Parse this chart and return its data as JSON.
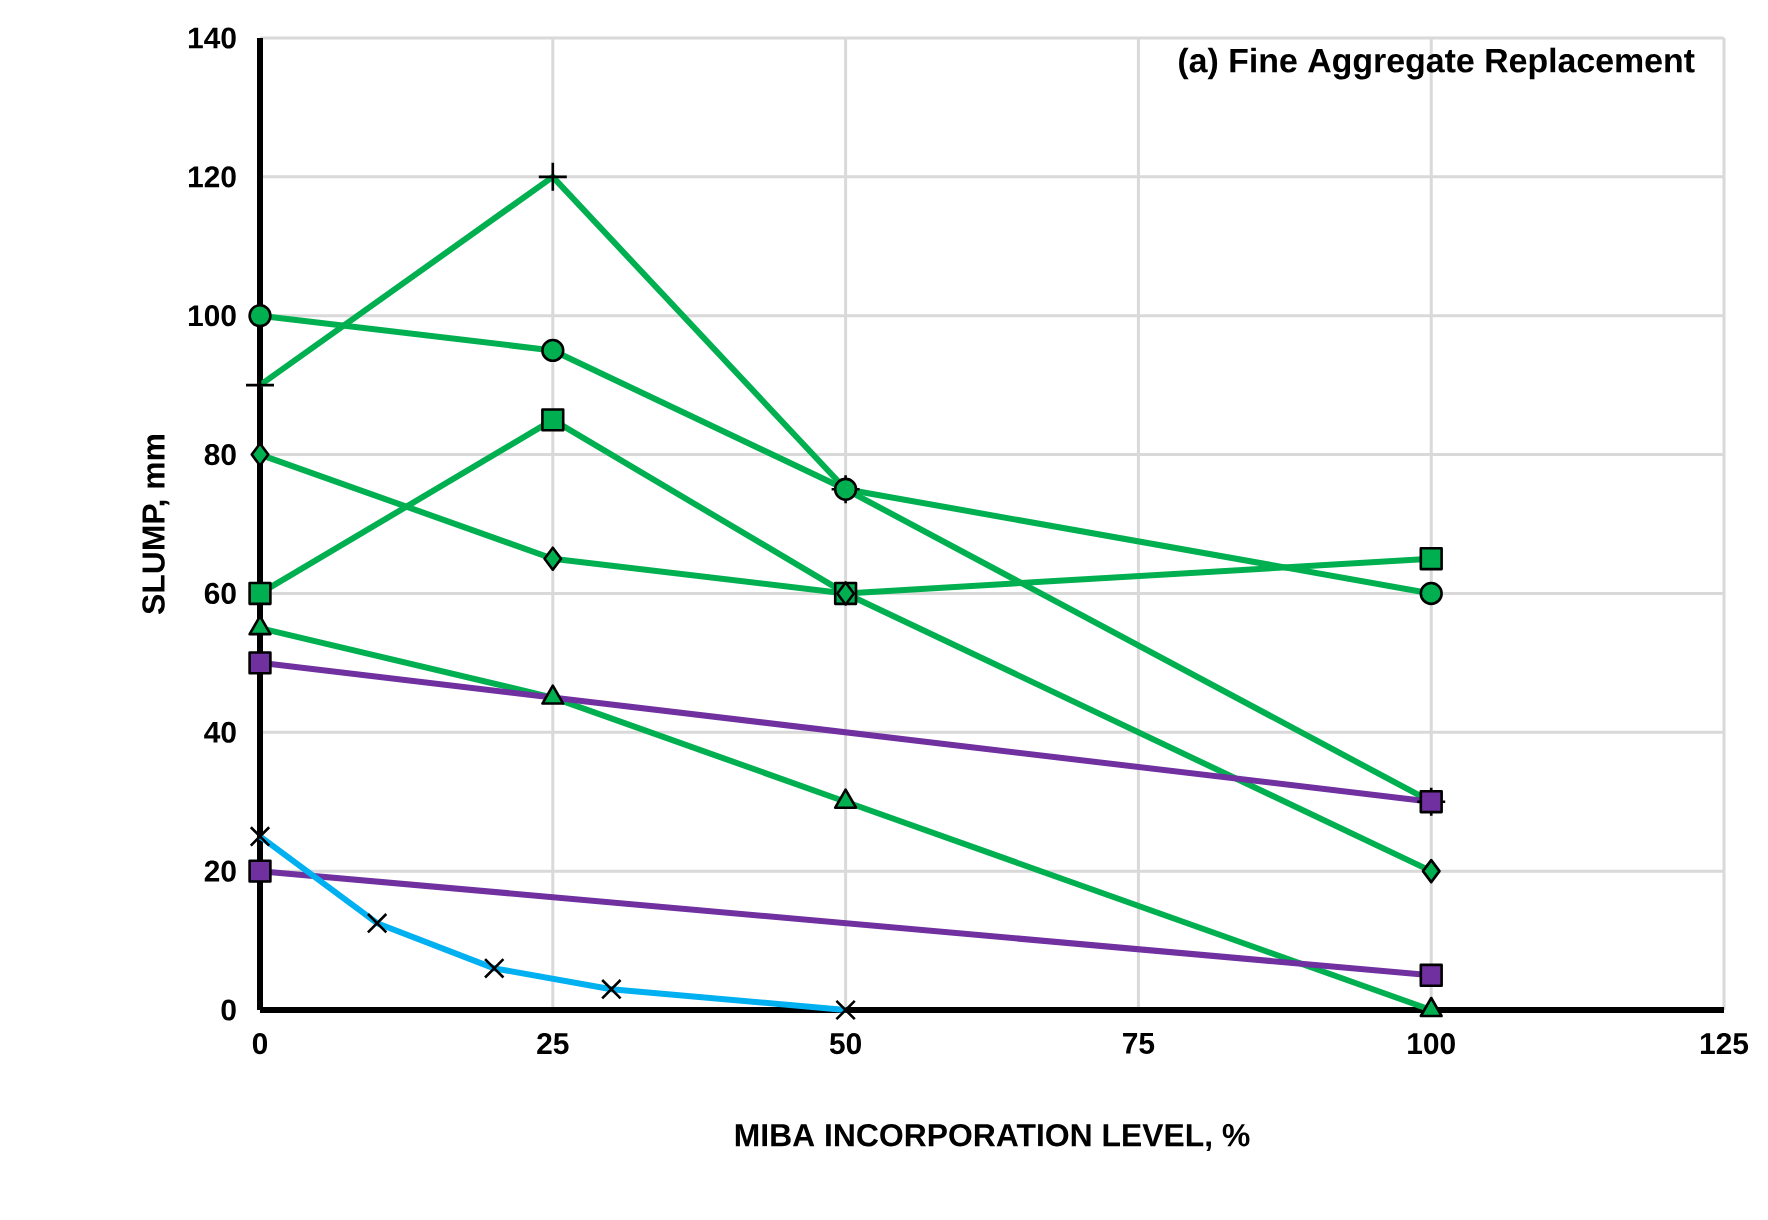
{
  "chart_data": {
    "type": "line",
    "title": "(a) Fine Aggregate Replacement",
    "xlabel": "MIBA INCORPORATION LEVEL, %",
    "ylabel": "SLUMP, mm",
    "xlim": [
      0,
      125
    ],
    "xticks": [
      0,
      25,
      50,
      75,
      100,
      125
    ],
    "ylim": [
      0,
      140
    ],
    "yticks": [
      0,
      20,
      40,
      60,
      80,
      100,
      120,
      140
    ],
    "grid": true,
    "series": [
      {
        "color": "#00b050",
        "marker": "plus",
        "x": [
          0,
          25,
          50,
          100
        ],
        "values": [
          90,
          120,
          75,
          30
        ]
      },
      {
        "color": "#00b050",
        "marker": "circle",
        "x": [
          0,
          25,
          50,
          100
        ],
        "values": [
          100,
          95,
          75,
          60
        ]
      },
      {
        "color": "#00b050",
        "marker": "square",
        "x": [
          0,
          25,
          50,
          100
        ],
        "values": [
          60,
          85,
          60,
          65
        ]
      },
      {
        "color": "#00b050",
        "marker": "diamond",
        "x": [
          0,
          25,
          50,
          100
        ],
        "values": [
          80,
          65,
          60,
          20
        ]
      },
      {
        "color": "#00b050",
        "marker": "triangle",
        "x": [
          0,
          25,
          50,
          100
        ],
        "values": [
          55,
          45,
          30,
          0
        ]
      },
      {
        "color": "#7030a0",
        "marker": "square",
        "x": [
          0,
          100
        ],
        "values": [
          50,
          30
        ]
      },
      {
        "color": "#7030a0",
        "marker": "square",
        "x": [
          0,
          100
        ],
        "values": [
          20,
          5
        ]
      },
      {
        "color": "#00b0f0",
        "marker": "cross",
        "x": [
          0,
          10,
          20,
          30,
          50
        ],
        "values": [
          25,
          12.5,
          6,
          3,
          0
        ]
      }
    ]
  }
}
